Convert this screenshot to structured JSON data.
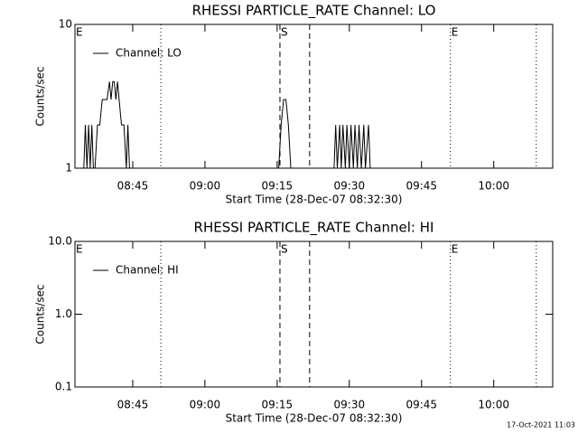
{
  "chart_data": [
    {
      "type": "line",
      "title": "RHESSI PARTICLE_RATE Channel: LO",
      "y_label": "Counts/sec",
      "x_label": "Start Time (28-Dec-07 08:32:30)",
      "log_y": true,
      "ylim": [
        1,
        10
      ],
      "yticks": [
        1,
        10
      ],
      "xlim": [
        "08:33:00",
        "10:12:15"
      ],
      "xticks": [
        "08:45",
        "09:00",
        "09:15",
        "09:30",
        "09:45",
        "10:00"
      ],
      "legend": "upper left",
      "markers": [
        {
          "x": "08:50:50",
          "style": "dotted"
        },
        {
          "x": "09:15:35",
          "style": "dashed"
        },
        {
          "x": "09:21:45",
          "style": "dashed"
        },
        {
          "x": "09:51:00",
          "style": "dotted"
        },
        {
          "x": "10:08:50",
          "style": "dotted"
        }
      ],
      "annotations": [
        {
          "text": "E",
          "x": "08:33:00"
        },
        {
          "text": "S",
          "x": "09:15:35"
        },
        {
          "text": "E",
          "x": "09:51:00"
        }
      ],
      "series": [
        {
          "name": "Channel: LO",
          "color": "#000000",
          "x": [
            "08:34:50",
            "08:35:10",
            "08:35:30",
            "08:35:50",
            "08:36:10",
            "08:36:30",
            "08:36:50",
            "08:37:10",
            "08:37:40",
            "08:38:10",
            "08:38:40",
            "08:39:10",
            "08:39:40",
            "08:40:10",
            "08:40:30",
            "08:40:50",
            "08:41:10",
            "08:41:30",
            "08:41:50",
            "08:42:10",
            "08:42:40",
            "08:43:10",
            "08:43:40",
            "08:44:00",
            "08:44:20",
            "08:44:40",
            "09:15:20",
            "09:15:50",
            "09:16:20",
            "09:16:50",
            "09:17:20",
            "09:17:50",
            "09:18:20",
            "09:26:50",
            "09:27:10",
            "09:27:30",
            "09:28:00",
            "09:28:20",
            "09:28:40",
            "09:29:10",
            "09:29:30",
            "09:30:00",
            "09:30:20",
            "09:30:50",
            "09:31:10",
            "09:31:40",
            "09:32:00",
            "09:32:30",
            "09:33:00",
            "09:33:20",
            "09:34:00",
            "09:34:20",
            "09:34:50"
          ],
          "values": [
            1,
            2,
            1,
            2,
            1,
            2,
            1,
            1,
            2,
            2,
            3,
            3,
            3,
            4,
            3,
            4,
            4,
            3,
            4,
            3,
            2,
            2,
            1,
            2,
            1,
            1,
            1,
            2,
            3,
            3,
            2,
            1,
            1,
            1,
            2,
            1,
            2,
            1,
            2,
            1,
            2,
            1,
            2,
            1,
            2,
            1,
            2,
            1,
            2,
            1,
            2,
            1,
            1
          ]
        }
      ]
    },
    {
      "type": "line",
      "title": "RHESSI PARTICLE_RATE Channel: HI",
      "y_label": "Counts/sec",
      "x_label": "Start Time (28-Dec-07 08:32:30)",
      "log_y": true,
      "ylim": [
        0.1,
        10
      ],
      "yticks": [
        0.1,
        {
          "value": 1,
          "label": "1.0"
        },
        {
          "value": 10,
          "label": "10.0"
        }
      ],
      "xlim": [
        "08:33:00",
        "10:12:15"
      ],
      "xticks": [
        "08:45",
        "09:00",
        "09:15",
        "09:30",
        "09:45",
        "10:00"
      ],
      "legend": "upper left",
      "markers": [
        {
          "x": "08:50:50",
          "style": "dotted"
        },
        {
          "x": "09:15:35",
          "style": "dashed"
        },
        {
          "x": "09:21:45",
          "style": "dashed"
        },
        {
          "x": "09:51:00",
          "style": "dotted"
        },
        {
          "x": "10:08:50",
          "style": "dotted"
        }
      ],
      "annotations": [
        {
          "text": "E",
          "x": "08:33:00"
        },
        {
          "text": "S",
          "x": "09:15:35"
        },
        {
          "text": "E",
          "x": "09:51:00"
        }
      ],
      "series": [
        {
          "name": "Channel: HI",
          "color": "#000000",
          "x": [],
          "values": []
        }
      ]
    }
  ],
  "footer": "17-Oct-2021 11:03"
}
